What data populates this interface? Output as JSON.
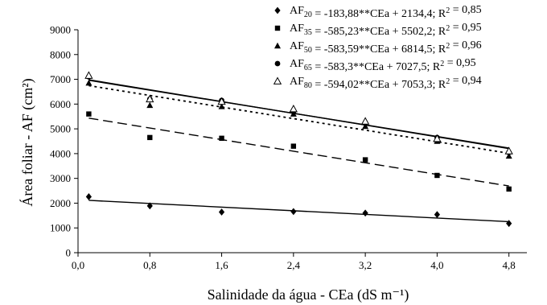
{
  "chart_data": {
    "type": "scatter",
    "xlabel": "Salinidade da água - CEa (dS m⁻¹)",
    "ylabel": "Área foliar - AF (cm²)",
    "xlim": [
      0,
      5
    ],
    "ylim": [
      0,
      9000
    ],
    "x_ticks": [
      0.0,
      0.8,
      1.6,
      2.4,
      3.2,
      4.0,
      4.8
    ],
    "x_tick_labels": [
      "0,0",
      "0,8",
      "1,6",
      "2,4",
      "3,2",
      "4,0",
      "4,8"
    ],
    "y_ticks": [
      0,
      1000,
      2000,
      3000,
      4000,
      5000,
      6000,
      7000,
      8000,
      9000
    ],
    "y_tick_labels": [
      "0",
      "1000",
      "2000",
      "3000",
      "4000",
      "5000",
      "6000",
      "7000",
      "8000",
      "9000"
    ],
    "grid": false,
    "legend_position": "top-right",
    "series": [
      {
        "name": "AF20",
        "legend_label": "AF₂₀ = -183,88**CEa + 2134,4; R² = 0,85",
        "marker": "diamond",
        "line_style": "solid",
        "slope": -183.88,
        "intercept": 2134.4,
        "x": [
          0.12,
          0.8,
          1.6,
          2.4,
          3.2,
          4.0,
          4.8
        ],
        "y": [
          2260,
          1890,
          1640,
          1660,
          1600,
          1540,
          1180
        ]
      },
      {
        "name": "AF35",
        "legend_label": "AF₃₅ = -585,23**CEa + 5502,2; R² = 0,95",
        "marker": "square",
        "line_style": "long-dash",
        "slope": -585.23,
        "intercept": 5502.2,
        "x": [
          0.12,
          0.8,
          1.6,
          2.4,
          3.2,
          4.0,
          4.8
        ],
        "y": [
          5600,
          4650,
          4620,
          4300,
          3750,
          3120,
          2570
        ]
      },
      {
        "name": "AF50",
        "legend_label": "AF₅₀ = -583,59**CEa + 6814,5; R² = 0,96",
        "marker": "triangle",
        "line_style": "short-dash",
        "slope": -583.59,
        "intercept": 6814.5,
        "x": [
          0.12,
          0.8,
          1.6,
          2.4,
          3.2,
          4.0,
          4.8
        ],
        "y": [
          6850,
          5950,
          5900,
          5600,
          5100,
          4500,
          3900
        ]
      },
      {
        "name": "AF65",
        "legend_label": "AF₆₅ = -583,3**CEa + 7027,5; R² = 0,95",
        "marker": "circle",
        "line_style": "solid",
        "slope": -583.3,
        "intercept": 7027.5,
        "x": [
          0.12,
          0.8,
          1.6,
          2.4,
          3.2,
          4.0,
          4.8
        ],
        "y": [
          7100,
          6200,
          6150,
          5700,
          5250,
          4650,
          4050
        ]
      },
      {
        "name": "AF80",
        "legend_label": "AF₈₀ = -594,02**CEa + 7053,3; R² = 0,94",
        "marker": "triangle-open",
        "line_style": "solid",
        "slope": -594.02,
        "intercept": 7053.3,
        "x": [
          0.12,
          0.8,
          1.6,
          2.4,
          3.2,
          4.0,
          4.8
        ],
        "y": [
          7150,
          6200,
          6100,
          5800,
          5300,
          4600,
          4100
        ]
      }
    ]
  }
}
